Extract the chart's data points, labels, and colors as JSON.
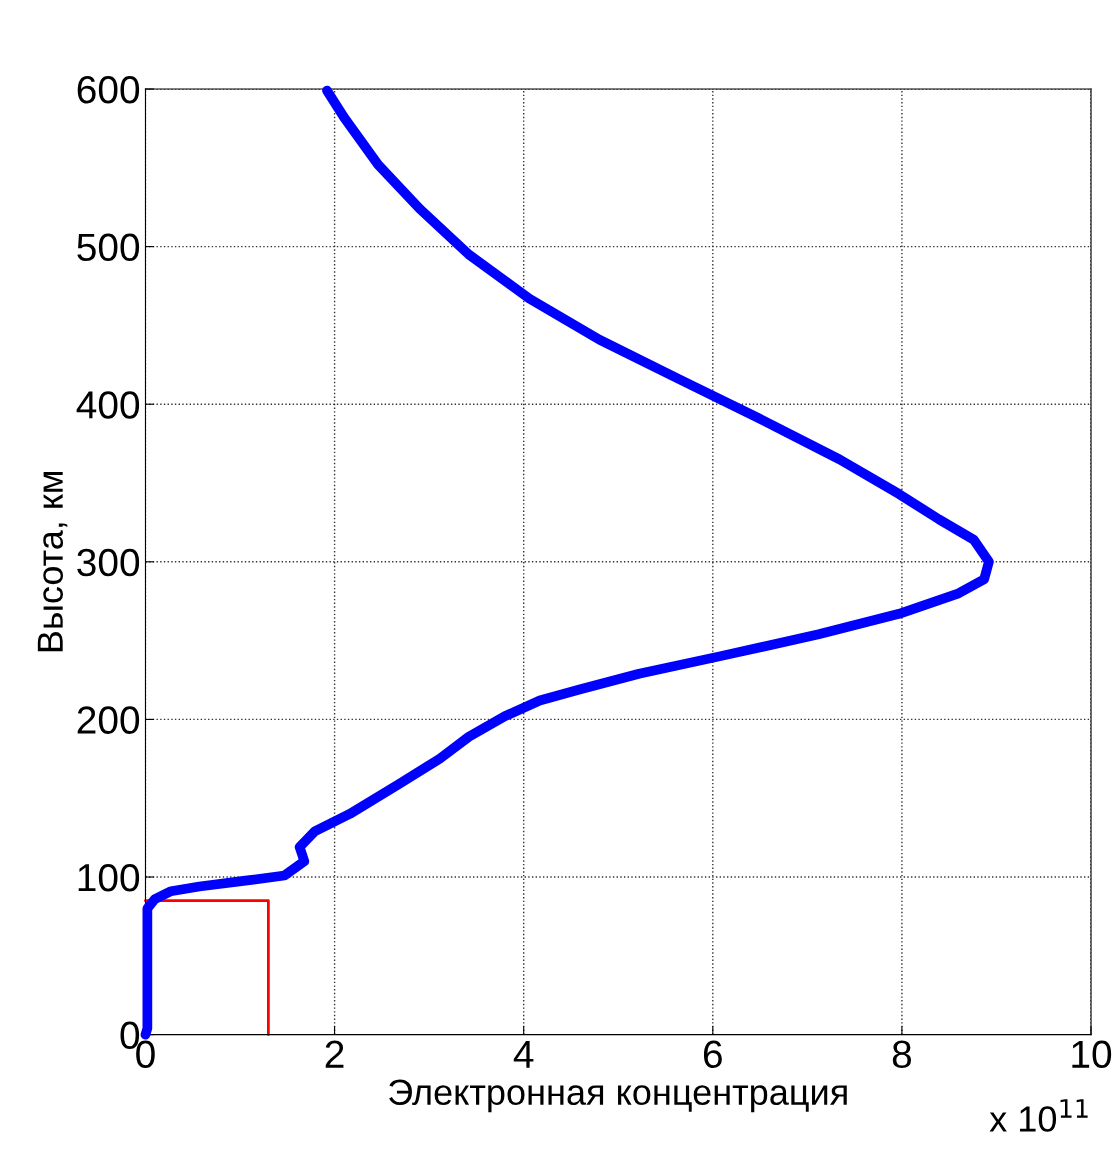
{
  "chart_data": {
    "type": "line",
    "xlabel": "Электронная концентрация",
    "ylabel": "Высота, км",
    "annotations": [
      "x 10$^{11}$"
    ],
    "series": [
      {
        "color": "#0000ff",
        "x": [
          1.92,
          2.1,
          2.46,
          2.9,
          3.42,
          4.06,
          4.8,
          5.64,
          6.49,
          7.34,
          7.97,
          8.39,
          8.76,
          8.92,
          8.87,
          8.6,
          7.97,
          7.12,
          6.07,
          5.22,
          4.59,
          4.17,
          3.8,
          3.42,
          3.11,
          2.68,
          2.16,
          1.79,
          1.63,
          1.68,
          1.47,
          1.1,
          0.57,
          0.27,
          0.1,
          0.02,
          0.02,
          0
        ],
        "values": [
          599,
          582,
          552,
          524,
          495,
          467,
          441,
          416,
          391,
          365,
          343,
          327,
          314,
          300,
          289,
          280,
          267,
          254,
          240,
          229,
          219,
          212,
          202,
          189,
          175,
          159,
          140,
          129,
          119,
          110,
          101,
          98,
          94,
          91,
          86,
          80,
          4,
          0
        ]
      },
      {
        "type": "line",
        "color": "#ff0000",
        "x": [
          0,
          1.3,
          1.3
        ],
        "values": [
          85,
          85,
          0
        ]
      }
    ],
    "xlim": [
      0,
      10
    ],
    "ylim": [
      0,
      600
    ],
    "xticks": [
      0,
      2,
      4,
      6,
      8,
      10
    ],
    "yticks": [
      0,
      100,
      200,
      300,
      400,
      500,
      600
    ],
    "grid": true,
    "marker": "none",
    "line_style": "solid"
  }
}
